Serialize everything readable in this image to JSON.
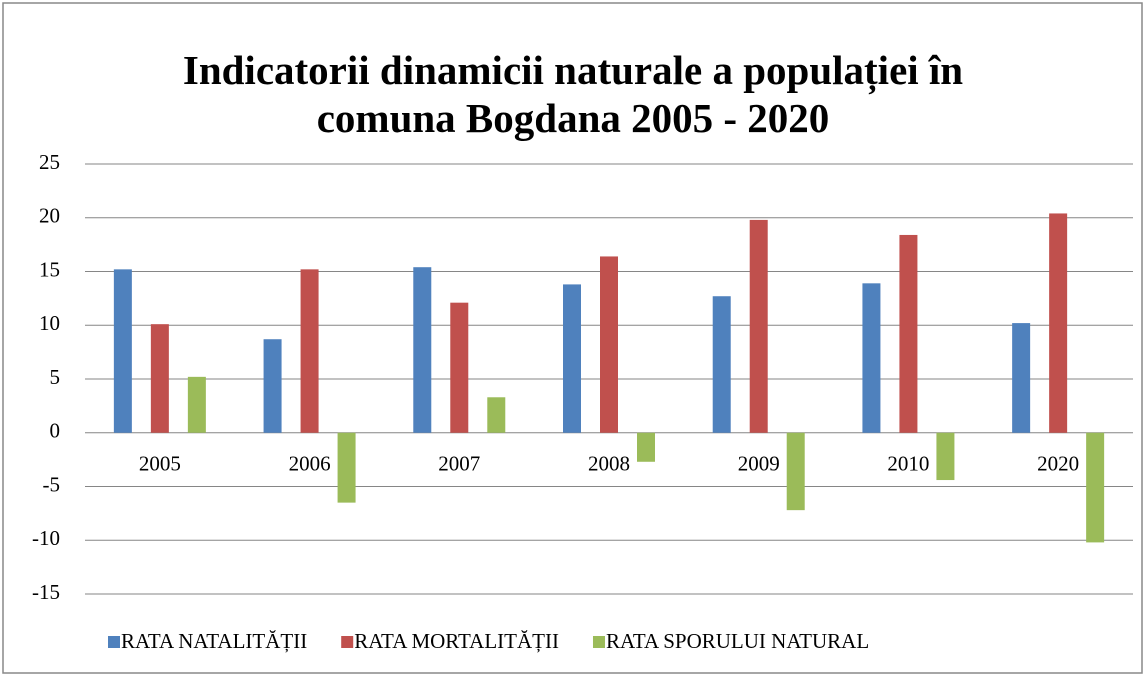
{
  "chart_data": {
    "type": "bar",
    "title": "Indicatorii dinamicii naturale a populației în comuna Bogdana 2005 - 2020",
    "categories": [
      "2005",
      "2006",
      "2007",
      "2008",
      "2009",
      "2010",
      "2020"
    ],
    "series": [
      {
        "name": "RATA NATALITĂȚII",
        "color": "#4f81bd",
        "values": [
          15.2,
          8.7,
          15.4,
          13.8,
          12.7,
          13.9,
          10.2
        ]
      },
      {
        "name": "RATA MORTALITĂȚII",
        "color": "#c0504d",
        "values": [
          10.1,
          15.2,
          12.1,
          16.4,
          19.8,
          18.4,
          20.4
        ]
      },
      {
        "name": "RATA SPORULUI NATURAL",
        "color": "#9bbb59",
        "values": [
          5.2,
          -6.5,
          3.3,
          -2.7,
          -7.2,
          -4.4,
          -10.2
        ]
      }
    ],
    "ylim": [
      -15,
      25
    ],
    "yticks": [
      -15,
      -10,
      -5,
      0,
      5,
      10,
      15,
      20,
      25
    ],
    "grid": true,
    "legend": "bottom"
  }
}
